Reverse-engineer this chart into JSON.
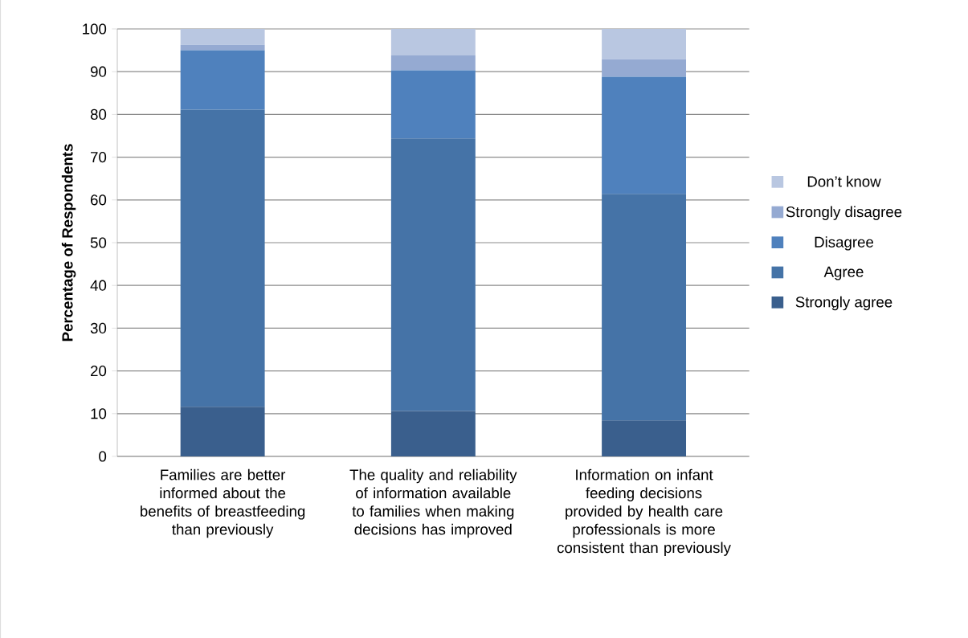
{
  "chart_data": {
    "type": "bar",
    "stacked": true,
    "ylabel": "Percentage of Respondents",
    "categories": [
      "Families are better informed about the benefits of breastfeeding than previously",
      "The quality and reliability of information available to families when making decisions has improved",
      "Information on infant feeding decisions provided by health care professionals is more consistent than previously"
    ],
    "series": [
      {
        "name": "Strongly agree",
        "color": "#3a5f8d",
        "values": [
          11.6,
          10.6,
          8.4
        ]
      },
      {
        "name": "Agree",
        "color": "#4573a7",
        "values": [
          69.5,
          63.8,
          53.0
        ]
      },
      {
        "name": "Disagree",
        "color": "#4f81bd",
        "values": [
          13.9,
          15.9,
          27.4
        ]
      },
      {
        "name": "Strongly disagree",
        "color": "#95aad2",
        "values": [
          1.3,
          3.6,
          4.1
        ]
      },
      {
        "name": "Don’t know",
        "color": "#b9c7e1",
        "values": [
          3.7,
          6.1,
          7.1
        ]
      }
    ],
    "ylim": [
      0,
      100
    ],
    "yticks": [
      0,
      10,
      20,
      30,
      40,
      50,
      60,
      70,
      80,
      90,
      100
    ],
    "grid": "y",
    "legend": "right"
  }
}
